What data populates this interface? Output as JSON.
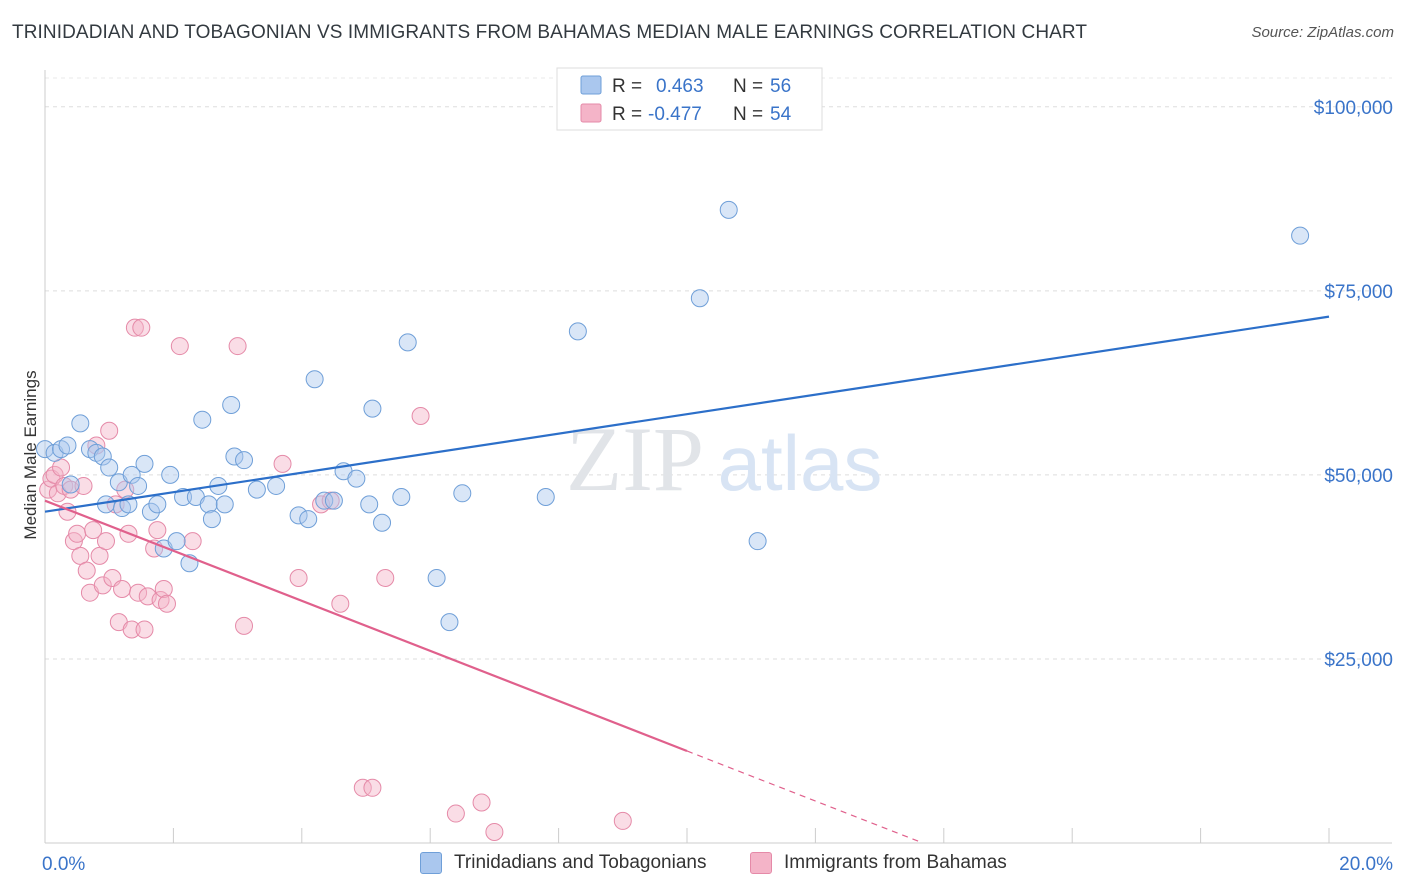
{
  "title": "TRINIDADIAN AND TOBAGONIAN VS IMMIGRANTS FROM BAHAMAS MEDIAN MALE EARNINGS CORRELATION CHART",
  "source": "Source: ZipAtlas.com",
  "watermark": {
    "zip": "ZIP",
    "atlas": "atlas"
  },
  "colors": {
    "blue_fill": "#aac7ee",
    "blue_stroke": "#6f9fd8",
    "blue_line": "#2c6fc9",
    "pink_fill": "#f4b4c8",
    "pink_stroke": "#e58aa8",
    "pink_line": "#e0608c",
    "axis_label": "#3a74c9",
    "grid": "#dddddd"
  },
  "legend": {
    "rows": [
      {
        "r_label": "R =",
        "r_value": "0.463",
        "n_label": "N =",
        "n_value": "56"
      },
      {
        "r_label": "R =",
        "r_value": "-0.477",
        "n_label": "N =",
        "n_value": "54"
      }
    ]
  },
  "chart_data": {
    "type": "scatter",
    "title": "TRINIDADIAN AND TOBAGONIAN VS IMMIGRANTS FROM BAHAMAS MEDIAN MALE EARNINGS CORRELATION CHART",
    "xlabel": "",
    "ylabel": "Median Male Earnings",
    "xlim": [
      0,
      20
    ],
    "ylim": [
      0,
      105000
    ],
    "x_tick_labels": [
      "0.0%",
      "20.0%"
    ],
    "y_ticks": [
      {
        "value": 25000,
        "label": "$25,000"
      },
      {
        "value": 50000,
        "label": "$50,000"
      },
      {
        "value": 75000,
        "label": "$75,000"
      },
      {
        "value": 100000,
        "label": "$100,000"
      }
    ],
    "grid": true,
    "legend_position": "top-center",
    "series": [
      {
        "name": "Trinidadians and Tobagonians",
        "color": "#aac7ee",
        "r": 0.463,
        "n": 56,
        "trend": {
          "x": [
            0,
            20
          ],
          "y": [
            45000,
            71500
          ]
        },
        "points": [
          [
            0.0,
            53500
          ],
          [
            0.15,
            53000
          ],
          [
            0.25,
            53500
          ],
          [
            0.35,
            54000
          ],
          [
            0.4,
            48700
          ],
          [
            0.55,
            57000
          ],
          [
            0.7,
            53500
          ],
          [
            0.8,
            53000
          ],
          [
            0.9,
            52500
          ],
          [
            0.95,
            46000
          ],
          [
            1.0,
            51000
          ],
          [
            1.15,
            49000
          ],
          [
            1.2,
            45500
          ],
          [
            1.3,
            46000
          ],
          [
            1.35,
            50000
          ],
          [
            1.45,
            48500
          ],
          [
            1.55,
            51500
          ],
          [
            1.65,
            45000
          ],
          [
            1.75,
            46000
          ],
          [
            1.85,
            40000
          ],
          [
            1.95,
            50000
          ],
          [
            2.05,
            41000
          ],
          [
            2.15,
            47000
          ],
          [
            2.25,
            38000
          ],
          [
            2.35,
            47000
          ],
          [
            2.45,
            57500
          ],
          [
            2.55,
            46000
          ],
          [
            2.6,
            44000
          ],
          [
            2.7,
            48500
          ],
          [
            2.8,
            46000
          ],
          [
            2.9,
            59500
          ],
          [
            2.95,
            52500
          ],
          [
            3.1,
            52000
          ],
          [
            3.3,
            48000
          ],
          [
            3.6,
            48500
          ],
          [
            3.95,
            44500
          ],
          [
            4.1,
            44000
          ],
          [
            4.2,
            63000
          ],
          [
            4.35,
            46500
          ],
          [
            4.5,
            46500
          ],
          [
            4.65,
            50500
          ],
          [
            4.85,
            49500
          ],
          [
            5.05,
            46000
          ],
          [
            5.1,
            59000
          ],
          [
            5.25,
            43500
          ],
          [
            5.55,
            47000
          ],
          [
            5.65,
            68000
          ],
          [
            6.1,
            36000
          ],
          [
            6.3,
            30000
          ],
          [
            6.5,
            47500
          ],
          [
            7.8,
            47000
          ],
          [
            8.3,
            69500
          ],
          [
            10.2,
            74000
          ],
          [
            10.65,
            86000
          ],
          [
            11.1,
            41000
          ],
          [
            19.55,
            82500
          ]
        ]
      },
      {
        "name": "Immigrants from Bahamas",
        "color": "#f4b4c8",
        "r": -0.477,
        "n": 54,
        "trend": {
          "x": [
            0,
            10
          ],
          "y": [
            46500,
            12500
          ]
        },
        "points": [
          [
            0.05,
            48000
          ],
          [
            0.1,
            49500
          ],
          [
            0.15,
            50000
          ],
          [
            0.2,
            47500
          ],
          [
            0.25,
            51000
          ],
          [
            0.3,
            48500
          ],
          [
            0.35,
            45000
          ],
          [
            0.4,
            48000
          ],
          [
            0.45,
            41000
          ],
          [
            0.5,
            42000
          ],
          [
            0.55,
            39000
          ],
          [
            0.6,
            48500
          ],
          [
            0.65,
            37000
          ],
          [
            0.7,
            34000
          ],
          [
            0.75,
            42500
          ],
          [
            0.8,
            54000
          ],
          [
            0.85,
            39000
          ],
          [
            0.9,
            35000
          ],
          [
            0.95,
            41000
          ],
          [
            1.0,
            56000
          ],
          [
            1.05,
            36000
          ],
          [
            1.1,
            46000
          ],
          [
            1.15,
            30000
          ],
          [
            1.2,
            34500
          ],
          [
            1.25,
            48000
          ],
          [
            1.3,
            42000
          ],
          [
            1.35,
            29000
          ],
          [
            1.4,
            70000
          ],
          [
            1.45,
            34000
          ],
          [
            1.5,
            70000
          ],
          [
            1.55,
            29000
          ],
          [
            1.6,
            33500
          ],
          [
            1.7,
            40000
          ],
          [
            1.75,
            42500
          ],
          [
            1.8,
            33000
          ],
          [
            1.85,
            34500
          ],
          [
            1.9,
            32500
          ],
          [
            2.1,
            67500
          ],
          [
            2.3,
            41000
          ],
          [
            3.0,
            67500
          ],
          [
            3.1,
            29500
          ],
          [
            3.7,
            51500
          ],
          [
            3.95,
            36000
          ],
          [
            4.3,
            46000
          ],
          [
            4.45,
            46500
          ],
          [
            4.6,
            32500
          ],
          [
            4.95,
            7500
          ],
          [
            5.1,
            7500
          ],
          [
            5.3,
            36000
          ],
          [
            5.85,
            58000
          ],
          [
            6.4,
            4000
          ],
          [
            6.8,
            5500
          ],
          [
            7.0,
            1500
          ],
          [
            9.0,
            3000
          ]
        ]
      }
    ]
  }
}
